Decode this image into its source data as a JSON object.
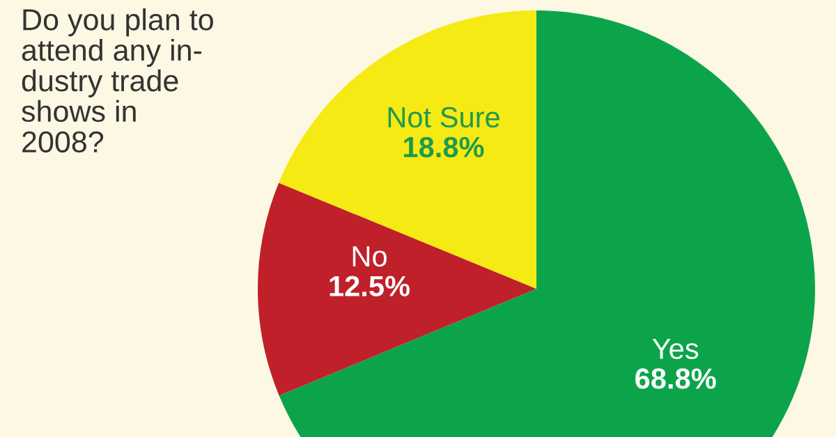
{
  "chart_data": {
    "type": "pie",
    "title": "Do you plan to\nattend any in-\ndustry trade\nshows in\n2008?",
    "categories": [
      "Yes",
      "No",
      "Not Sure"
    ],
    "values": [
      68.8,
      12.5,
      18.8
    ],
    "colors": [
      "#0ca44a",
      "#c0202a",
      "#f5ea14"
    ],
    "value_labels": [
      "68.8%",
      "12.5%",
      "18.8%"
    ]
  }
}
